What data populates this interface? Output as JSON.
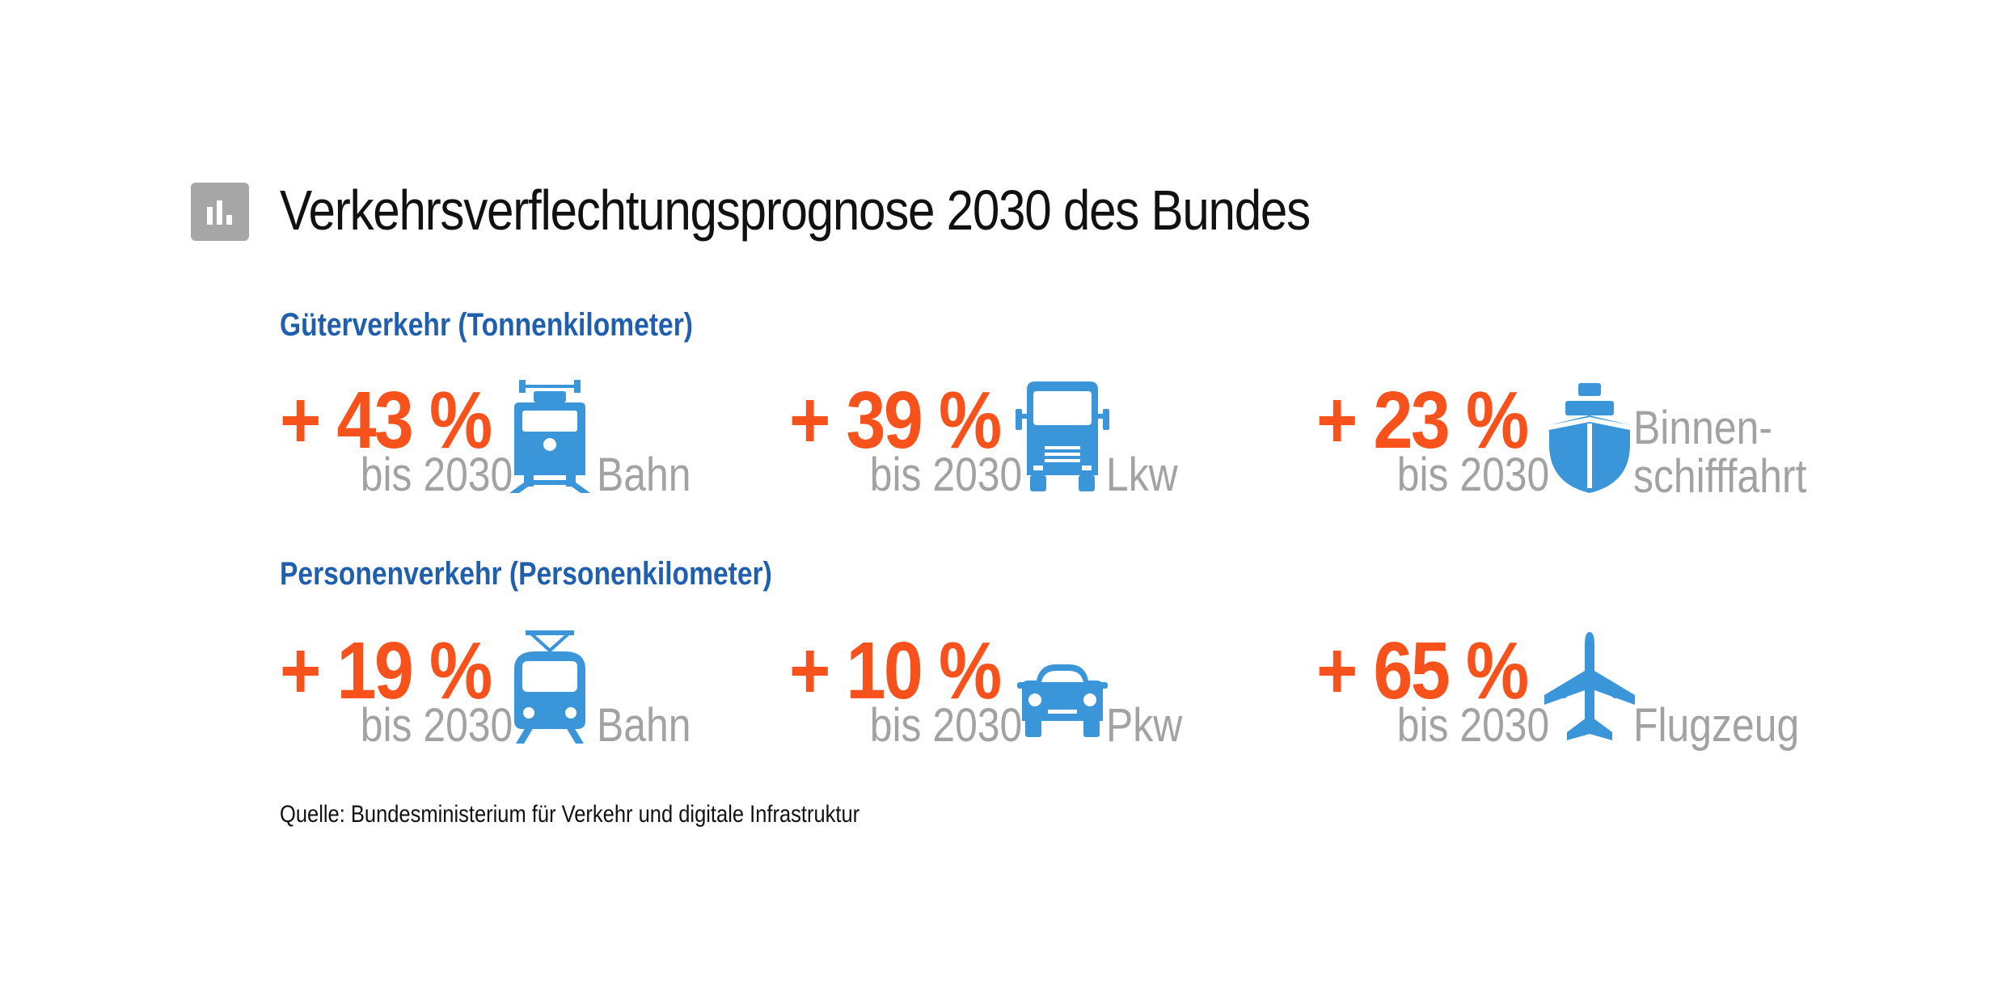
{
  "header": {
    "title": "Verkehrsverflechtungsprognose 2030 des Bundes",
    "icon": "bar-chart-icon"
  },
  "colors": {
    "accent": "#f7511c",
    "heading": "#1f5fae",
    "icon": "#3a96d8",
    "muted": "#a2a2a2",
    "icon_badge": "#a6a6a6"
  },
  "chart_data": {
    "type": "table",
    "title": "Verkehrsverflechtungsprognose 2030 des Bundes",
    "sections": [
      {
        "heading": "Güterverkehr (Tonnenkilometer)",
        "items": [
          {
            "value": "+ 43 %",
            "horizon": "bis 2030",
            "label": [
              "Bahn"
            ],
            "icon": "freight-train-icon"
          },
          {
            "value": "+ 39 %",
            "horizon": "bis 2030",
            "label": [
              "Lkw"
            ],
            "icon": "truck-icon"
          },
          {
            "value": "+ 23 %",
            "horizon": "bis 2030",
            "label": [
              "Binnen-",
              "schifffahrt"
            ],
            "icon": "ship-icon"
          }
        ]
      },
      {
        "heading": "Personenverkehr (Personenkilometer)",
        "items": [
          {
            "value": "+ 19 %",
            "horizon": "bis 2030",
            "label": [
              "Bahn"
            ],
            "icon": "passenger-train-icon"
          },
          {
            "value": "+ 10 %",
            "horizon": "bis 2030",
            "label": [
              "Pkw"
            ],
            "icon": "car-icon"
          },
          {
            "value": "+ 65 %",
            "horizon": "bis 2030",
            "label": [
              "Flugzeug"
            ],
            "icon": "airplane-icon"
          }
        ]
      }
    ],
    "source": "Quelle: Bundesministerium für Verkehr und digitale Infrastruktur"
  }
}
